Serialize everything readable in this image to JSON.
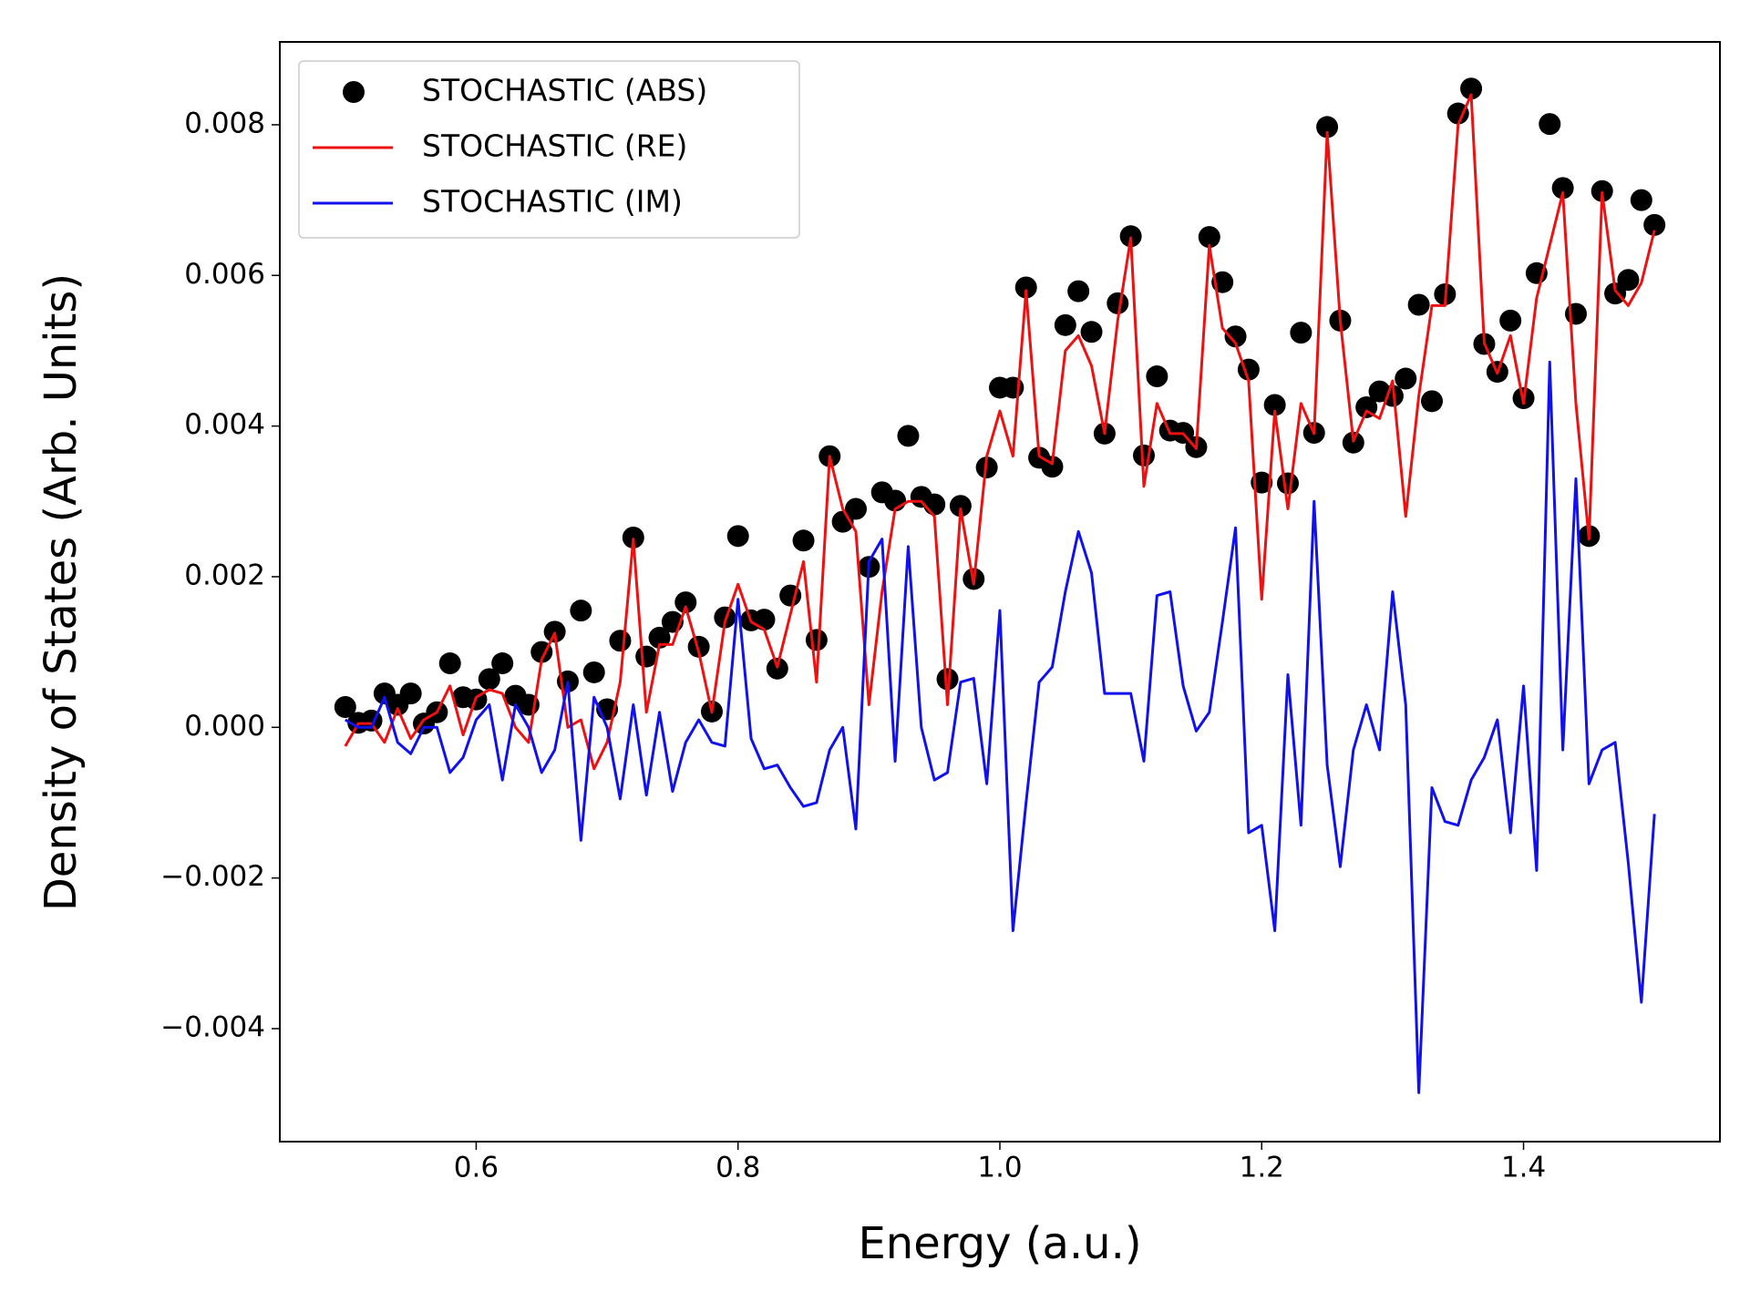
{
  "chart_data": {
    "type": "line",
    "xlabel": "Energy (a.u.)",
    "ylabel": "Density of States (Arb. Units)",
    "x": [
      0.5,
      0.51,
      0.52,
      0.53,
      0.54,
      0.55,
      0.56,
      0.57,
      0.58,
      0.59,
      0.6,
      0.61,
      0.62,
      0.63,
      0.64,
      0.65,
      0.66,
      0.67,
      0.68,
      0.69,
      0.7,
      0.71,
      0.72,
      0.73,
      0.74,
      0.75,
      0.76,
      0.77,
      0.78,
      0.79,
      0.8,
      0.81,
      0.82,
      0.83,
      0.84,
      0.85,
      0.86,
      0.87,
      0.88,
      0.89,
      0.9,
      0.91,
      0.92,
      0.93,
      0.94,
      0.95,
      0.96,
      0.97,
      0.98,
      0.99,
      1.0,
      1.01,
      1.02,
      1.03,
      1.04,
      1.05,
      1.06,
      1.07,
      1.08,
      1.09,
      1.1,
      1.11,
      1.12,
      1.13,
      1.14,
      1.15,
      1.16,
      1.17,
      1.18,
      1.19,
      1.2,
      1.21,
      1.22,
      1.23,
      1.24,
      1.25,
      1.26,
      1.27,
      1.28,
      1.29,
      1.3,
      1.31,
      1.32,
      1.33,
      1.34,
      1.35,
      1.36,
      1.37,
      1.38,
      1.39,
      1.4,
      1.41,
      1.42,
      1.43,
      1.44,
      1.45,
      1.46,
      1.47,
      1.48,
      1.49,
      1.5
    ],
    "series": [
      {
        "name": "STOCHASTIC (ABS)",
        "color": "#000000",
        "mode": "markers",
        "values": [
          0.00027,
          6e-05,
          9e-05,
          0.00045,
          0.0003,
          0.00045,
          5e-05,
          0.0002,
          0.00085,
          0.0004,
          0.00037,
          0.00064,
          0.00085,
          0.00042,
          0.0003,
          0.001,
          0.00127,
          0.00061,
          0.00155,
          0.00073,
          0.00024,
          0.00115,
          0.00252,
          0.00094,
          0.00119,
          0.0014,
          0.00166,
          0.00107,
          0.00021,
          0.00146,
          0.00254,
          0.00142,
          0.00143,
          0.00078,
          0.00175,
          0.00248,
          0.00116,
          0.0036,
          0.00273,
          0.0029,
          0.00213,
          0.00312,
          0.00301,
          0.00387,
          0.00306,
          0.00296,
          0.00064,
          0.00294,
          0.00197,
          0.00345,
          0.00451,
          0.00451,
          0.00584,
          0.00358,
          0.00346,
          0.00534,
          0.00579,
          0.00525,
          0.0039,
          0.00563,
          0.00652,
          0.00361,
          0.00466,
          0.00394,
          0.00391,
          0.00372,
          0.00651,
          0.00591,
          0.00519,
          0.00475,
          0.00325,
          0.00428,
          0.00324,
          0.00524,
          0.00391,
          0.00797,
          0.0054,
          0.00378,
          0.00425,
          0.00446,
          0.0044,
          0.00463,
          0.00561,
          0.00433,
          0.00575,
          0.00815,
          0.00848,
          0.00509,
          0.00472,
          0.0054,
          0.00437,
          0.00603,
          0.00801,
          0.00716,
          0.00549,
          0.00254,
          0.00712,
          0.00576,
          0.00594,
          0.007,
          0.00667
        ]
      },
      {
        "name": "STOCHASTIC (RE)",
        "color": "#ee1111",
        "mode": "lines",
        "values": [
          -0.00025,
          5e-05,
          5e-05,
          -0.0002,
          0.00025,
          -0.00015,
          0.0001,
          0.0002,
          0.00055,
          -0.0001,
          0.0004,
          0.0005,
          0.00045,
          0,
          -0.0002,
          0.0009,
          0.00125,
          0,
          0.0001,
          -0.00055,
          -0.0002,
          0.0006,
          0.0025,
          0.0002,
          0.0011,
          0.0011,
          0.0016,
          0.001,
          0.0002,
          0.0014,
          0.0019,
          0.0014,
          0.0013,
          0.0008,
          0.0015,
          0.0022,
          0.0006,
          0.0036,
          0.0029,
          0.0026,
          0.0003,
          0.0018,
          0.0029,
          0.003,
          0.003,
          0.0028,
          0.0003,
          0.0029,
          0.0019,
          0.0036,
          0.0042,
          0.0036,
          0.0058,
          0.0036,
          0.0035,
          0.005,
          0.0052,
          0.0048,
          0.0039,
          0.0054,
          0.0065,
          0.0032,
          0.0043,
          0.0039,
          0.0039,
          0.0037,
          0.0064,
          0.0053,
          0.0051,
          0.0046,
          0.0017,
          0.0042,
          0.0029,
          0.0043,
          0.0039,
          0.0079,
          0.0054,
          0.0038,
          0.0042,
          0.0041,
          0.0046,
          0.0028,
          0.0044,
          0.0056,
          0.0056,
          0.008,
          0.0084,
          0.0051,
          0.0047,
          0.0052,
          0.0043,
          0.0057,
          0.0064,
          0.0071,
          0.0043,
          0.0025,
          0.0071,
          0.0058,
          0.0056,
          0.0059,
          0.0066
        ]
      },
      {
        "name": "STOCHASTIC (IM)",
        "color": "#1111ee",
        "mode": "lines",
        "values": [
          0.0001,
          0,
          0,
          0.0004,
          -0.0002,
          -0.00035,
          0,
          0,
          -0.0006,
          -0.0004,
          0.0001,
          0.0003,
          -0.0007,
          0.0003,
          0,
          -0.0006,
          -0.0003,
          0.0006,
          -0.0015,
          0.0004,
          0,
          -0.00095,
          0.0003,
          -0.0009,
          0.0002,
          -0.00085,
          -0.0002,
          0.0001,
          -0.0002,
          -0.00025,
          0.0017,
          -0.00015,
          -0.00055,
          -0.0005,
          -0.0008,
          -0.00105,
          -0.001,
          -0.0003,
          0,
          -0.00135,
          0.0022,
          0.0025,
          -0.00045,
          0.0024,
          0,
          -0.0007,
          -0.0006,
          0.0006,
          0.00065,
          -0.00075,
          0.00155,
          -0.0027,
          -0.001,
          0.0006,
          0.0008,
          0.0018,
          0.0026,
          0.00205,
          0.00045,
          0.00045,
          0.00045,
          -0.00045,
          0.00175,
          0.0018,
          0.00055,
          -5e-05,
          0.0002,
          0.0014,
          0.00265,
          -0.0014,
          -0.0013,
          -0.0027,
          0.0007,
          -0.0013,
          0.003,
          -0.0005,
          -0.00185,
          -0.0003,
          0.0003,
          -0.0003,
          0.0018,
          0.0003,
          -0.00485,
          -0.0008,
          -0.00125,
          -0.0013,
          -0.0007,
          -0.0004,
          0.0001,
          -0.0014,
          0.00055,
          -0.0019,
          0.00485,
          -0.0003,
          0.0033,
          -0.00075,
          -0.0003,
          -0.0002,
          -0.0018,
          -0.00365,
          -0.00115
        ]
      }
    ],
    "xlim": [
      0.45,
      1.55
    ],
    "ylim": [
      -0.0055,
      0.0091
    ],
    "xticks": [
      0.6,
      0.8,
      {
        "value": 1,
        "label": "1.0"
      },
      1.2,
      1.4
    ],
    "yticks": [
      {
        "value": -0.004,
        "label": "−0.004"
      },
      {
        "value": -0.002,
        "label": "−0.002"
      },
      {
        "value": 0,
        "label": "0.000"
      },
      0.002,
      0.004,
      0.006,
      0.008
    ],
    "legend": "upper left"
  }
}
